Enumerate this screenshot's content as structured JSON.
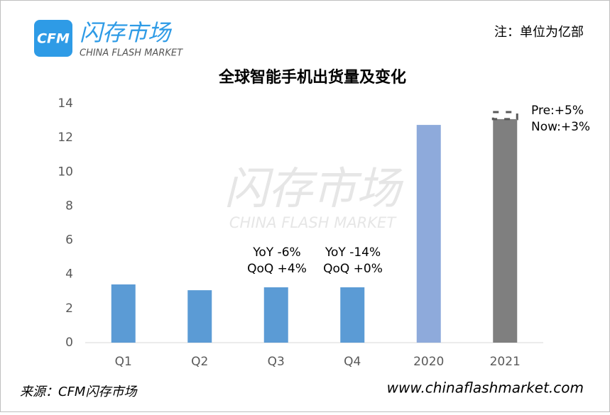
{
  "chart_data": {
    "type": "bar",
    "title": "全球智能手机出货量及变化",
    "categories": [
      "Q1",
      "Q2",
      "Q3",
      "Q4",
      "2020",
      "2021"
    ],
    "values": [
      3.41,
      3.07,
      3.24,
      3.24,
      12.75,
      13.09
    ],
    "colors": [
      "#5b9bd5",
      "#5b9bd5",
      "#5b9bd5",
      "#5b9bd5",
      "#8eaadb",
      "#7f7f7f"
    ],
    "forecast_value": 13.5,
    "ylim": [
      0,
      14
    ],
    "yticks": [
      0,
      2,
      4,
      6,
      8,
      10,
      12,
      14
    ],
    "grid": false,
    "annotations": [
      [
        "YoY -6%",
        "QoQ +4%"
      ],
      [
        "YoY -14%",
        "QoQ +0%"
      ],
      [
        "Pre:+5%",
        "Now:+3%"
      ]
    ],
    "unit_note": "注：单位为亿部",
    "logo": {
      "mark": "CFM",
      "name": "闪存市场",
      "subname": "CHINA FLASH MARKET"
    },
    "watermark": {
      "name": "闪存市场",
      "subname": "CHINA FLASH MARKET"
    },
    "source": "来源：CFM闪存市场",
    "website": "www.chinaflashmarket.com"
  }
}
